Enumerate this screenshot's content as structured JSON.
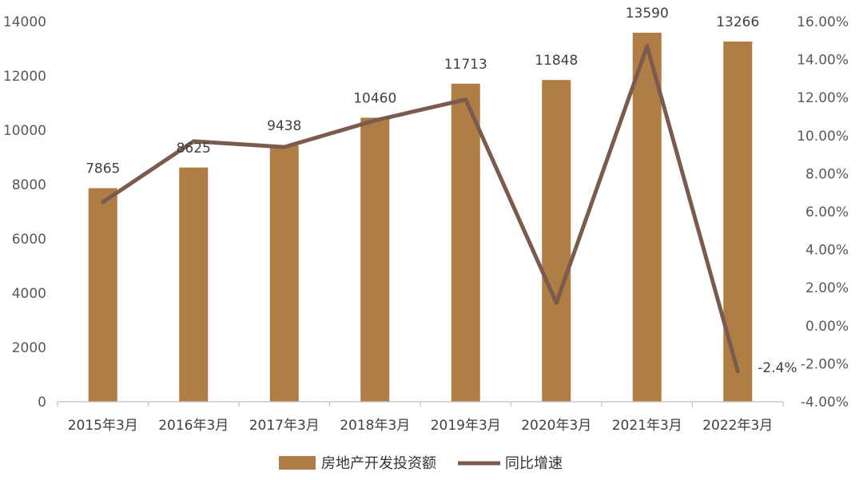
{
  "chart_data": {
    "type": "bar",
    "categories": [
      "2015年3月",
      "2016年3月",
      "2017年3月",
      "2018年3月",
      "2019年3月",
      "2020年3月",
      "2021年3月",
      "2022年3月"
    ],
    "series": [
      {
        "name": "房地产开发投资额",
        "type": "bar",
        "axis": "left",
        "color": "#B07D45",
        "values": [
          7865,
          8625,
          9438,
          10460,
          11713,
          11848,
          13590,
          13266
        ],
        "data_labels": [
          "7865",
          "8625",
          "9438",
          "10460",
          "11713",
          "11848",
          "13590",
          "13266"
        ]
      },
      {
        "name": "同比增速",
        "type": "line",
        "axis": "right",
        "color": "#7A5B4E",
        "values": [
          6.5,
          9.7,
          9.4,
          10.8,
          11.9,
          1.2,
          14.7,
          -2.4
        ],
        "end_label": "-2.4%"
      }
    ],
    "y_left": {
      "ylim": [
        0,
        14000
      ],
      "ticks": [
        0,
        2000,
        4000,
        6000,
        8000,
        10000,
        12000,
        14000
      ],
      "tick_labels": [
        "0",
        "2000",
        "4000",
        "6000",
        "8000",
        "10000",
        "12000",
        "14000"
      ]
    },
    "y_right": {
      "ylim": [
        -4,
        16
      ],
      "ticks": [
        -4,
        -2,
        0,
        2,
        4,
        6,
        8,
        10,
        12,
        14,
        16
      ],
      "tick_labels": [
        "-4.00%",
        "-2.00%",
        "0.00%",
        "2.00%",
        "4.00%",
        "6.00%",
        "8.00%",
        "10.00%",
        "12.00%",
        "14.00%",
        "16.00%"
      ]
    },
    "grid": false,
    "legend": "bottom-center",
    "title": "",
    "xlabel": "",
    "ylabel": ""
  }
}
